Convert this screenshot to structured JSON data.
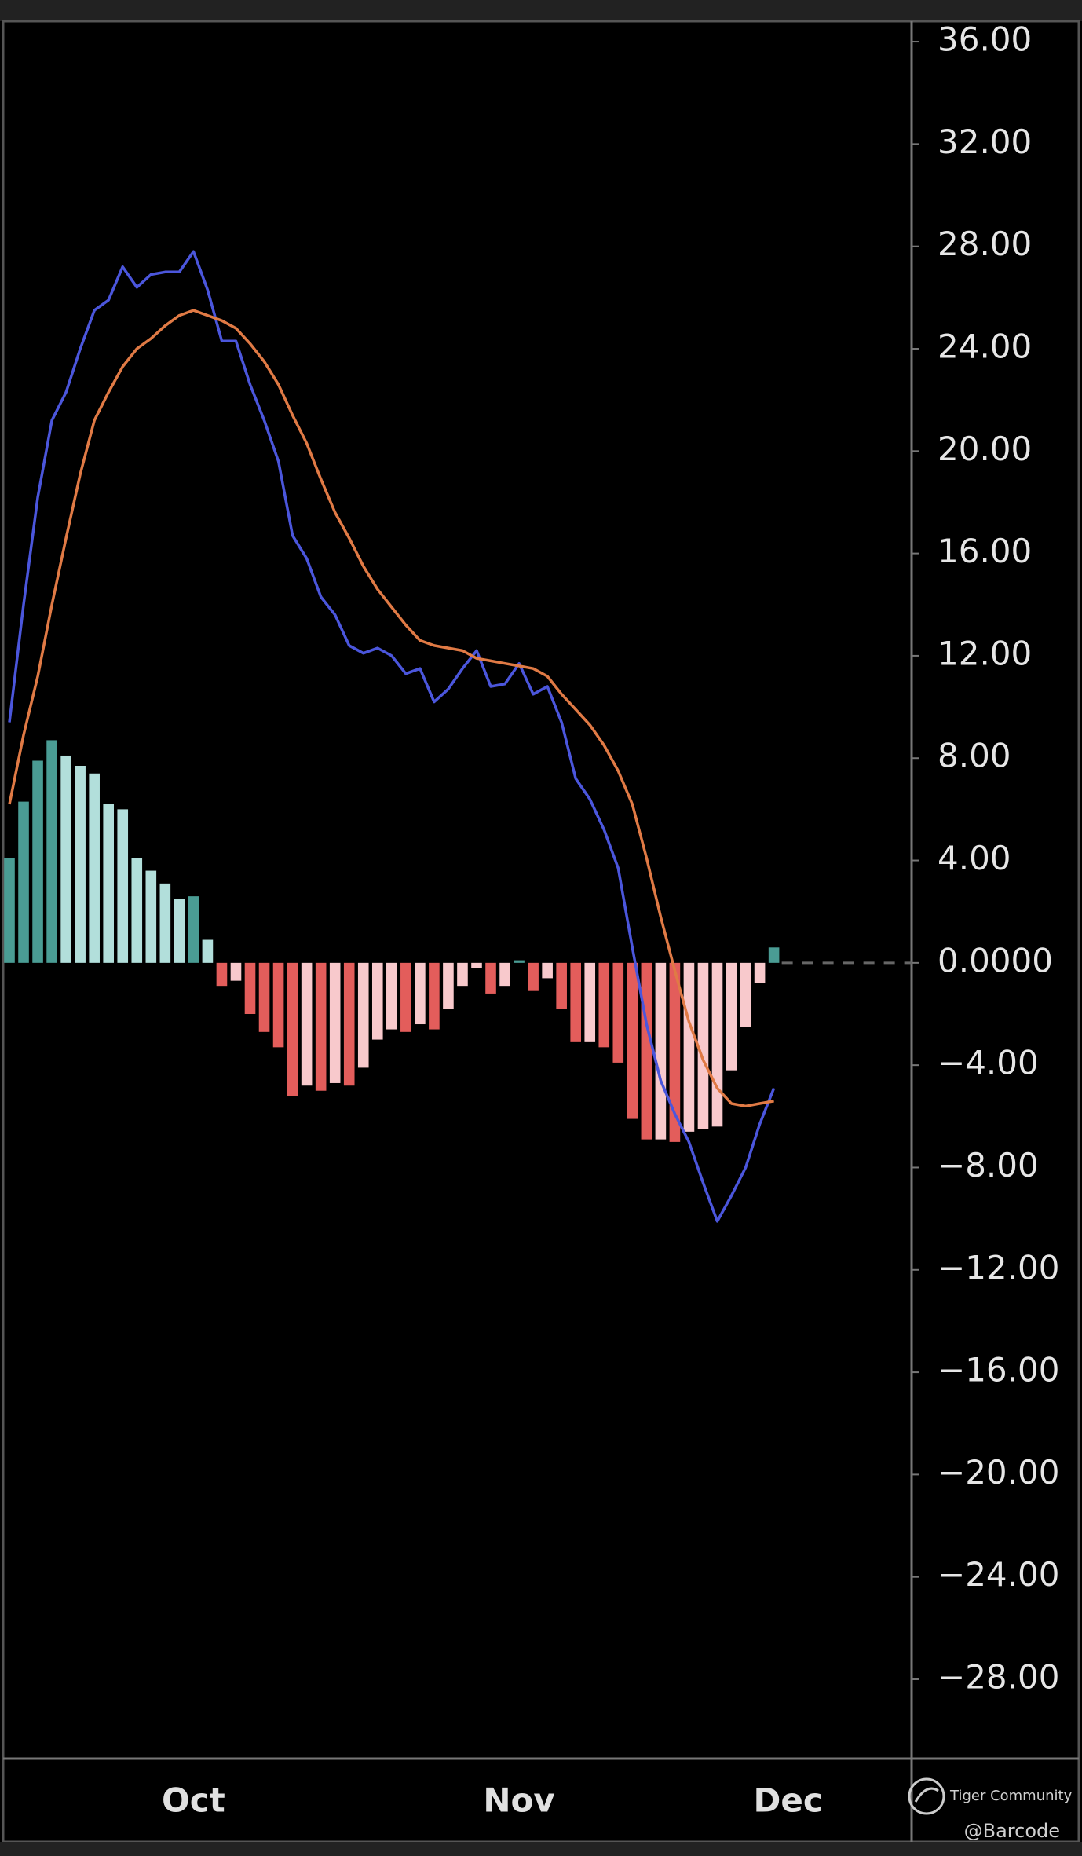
{
  "chart_data": {
    "type": "bar",
    "categories": [
      null,
      null,
      null,
      null,
      null,
      null,
      null,
      null,
      null,
      null,
      null,
      null,
      null,
      "Oct",
      null,
      null,
      null,
      null,
      null,
      null,
      null,
      null,
      null,
      null,
      null,
      null,
      null,
      null,
      null,
      null,
      null,
      null,
      null,
      null,
      null,
      null,
      "Nov",
      null,
      null,
      null,
      null,
      null,
      null,
      null,
      null,
      null,
      null,
      null,
      null,
      null,
      null,
      null,
      null,
      null,
      null,
      "Dec",
      null,
      null,
      null,
      null,
      null,
      null,
      null,
      null
    ],
    "series": [
      {
        "type": "bar",
        "colors": [
          "#4a9c94",
          "#b2dfdb",
          "#e35d5b",
          "#f8c9cc"
        ],
        "values": [
          4.1,
          6.3,
          7.9,
          8.7,
          8.1,
          7.7,
          7.4,
          6.2,
          6.0,
          4.1,
          3.6,
          3.1,
          2.5,
          2.6,
          0.9,
          -0.9,
          -0.7,
          -2.0,
          -2.7,
          -3.3,
          -5.2,
          -4.8,
          -5.0,
          -4.7,
          -4.8,
          -4.1,
          -3.0,
          -2.6,
          -2.7,
          -2.4,
          -2.6,
          -1.8,
          -0.9,
          -0.2,
          -1.2,
          -0.9,
          0.1,
          -1.1,
          -0.6,
          -1.8,
          -3.1,
          -3.1,
          -3.3,
          -3.9,
          -6.1,
          -6.9,
          -6.9,
          -7.0,
          -6.6,
          -6.5,
          -6.4,
          -4.2,
          -2.5,
          -0.8,
          0.6,
          null,
          null,
          null,
          null,
          null,
          null,
          null,
          null,
          null
        ]
      },
      {
        "type": "line",
        "color": "#4b56dc",
        "values": [
          9.4,
          14.0,
          18.2,
          21.2,
          22.3,
          24.0,
          25.5,
          25.9,
          27.2,
          26.4,
          26.9,
          27.0,
          27.0,
          27.8,
          26.3,
          24.3,
          24.3,
          22.6,
          21.2,
          19.6,
          16.7,
          15.8,
          14.3,
          13.6,
          12.4,
          12.1,
          12.3,
          12.0,
          11.3,
          11.5,
          10.2,
          10.7,
          11.5,
          12.2,
          10.8,
          10.9,
          11.7,
          10.5,
          10.8,
          9.4,
          7.2,
          6.4,
          5.2,
          3.7,
          0.6,
          -2.4,
          -4.6,
          -5.9,
          -7.0,
          -8.6,
          -10.1,
          -9.1,
          -8.0,
          -6.3,
          -4.9,
          null,
          null,
          null,
          null,
          null,
          null,
          null,
          null,
          null
        ]
      },
      {
        "type": "line",
        "color": "#e07a45",
        "values": [
          6.2,
          8.9,
          11.2,
          14.0,
          16.6,
          19.1,
          21.2,
          22.3,
          23.3,
          24.0,
          24.4,
          24.9,
          25.3,
          25.5,
          25.3,
          25.1,
          24.8,
          24.2,
          23.5,
          22.6,
          21.4,
          20.3,
          18.9,
          17.6,
          16.6,
          15.5,
          14.6,
          13.9,
          13.2,
          12.6,
          12.4,
          12.3,
          12.2,
          11.9,
          11.8,
          11.7,
          11.6,
          11.5,
          11.2,
          10.5,
          9.9,
          9.3,
          8.5,
          7.5,
          6.2,
          4.1,
          1.8,
          -0.3,
          -2.3,
          -3.8,
          -4.9,
          -5.5,
          -5.6,
          -5.5,
          -5.4,
          null,
          null,
          null,
          null,
          null,
          null,
          null,
          null,
          null
        ]
      }
    ],
    "ylim": [
      -31.1,
      36.8
    ],
    "yticks": [
      {
        "value": 36,
        "label": "36.00"
      },
      {
        "value": 32,
        "label": "32.00"
      },
      {
        "value": 28,
        "label": "28.00"
      },
      {
        "value": 24,
        "label": "24.00"
      },
      {
        "value": 20,
        "label": "20.00"
      },
      {
        "value": 16,
        "label": "16.00"
      },
      {
        "value": 12,
        "label": "12.00"
      },
      {
        "value": 8,
        "label": "8.00"
      },
      {
        "value": 4,
        "label": "4.00"
      },
      {
        "value": 0,
        "label": "0.0000"
      },
      {
        "value": -4,
        "label": "−4.00"
      },
      {
        "value": -8,
        "label": "−8.00"
      },
      {
        "value": -12,
        "label": "−12.00"
      },
      {
        "value": -16,
        "label": "−16.00"
      },
      {
        "value": -20,
        "label": "−20.00"
      },
      {
        "value": -24,
        "label": "−24.00"
      },
      {
        "value": -28,
        "label": "−28.00"
      }
    ],
    "zero_line": true
  },
  "watermark": {
    "brand": "Tiger Community",
    "user": "@Barcode"
  }
}
